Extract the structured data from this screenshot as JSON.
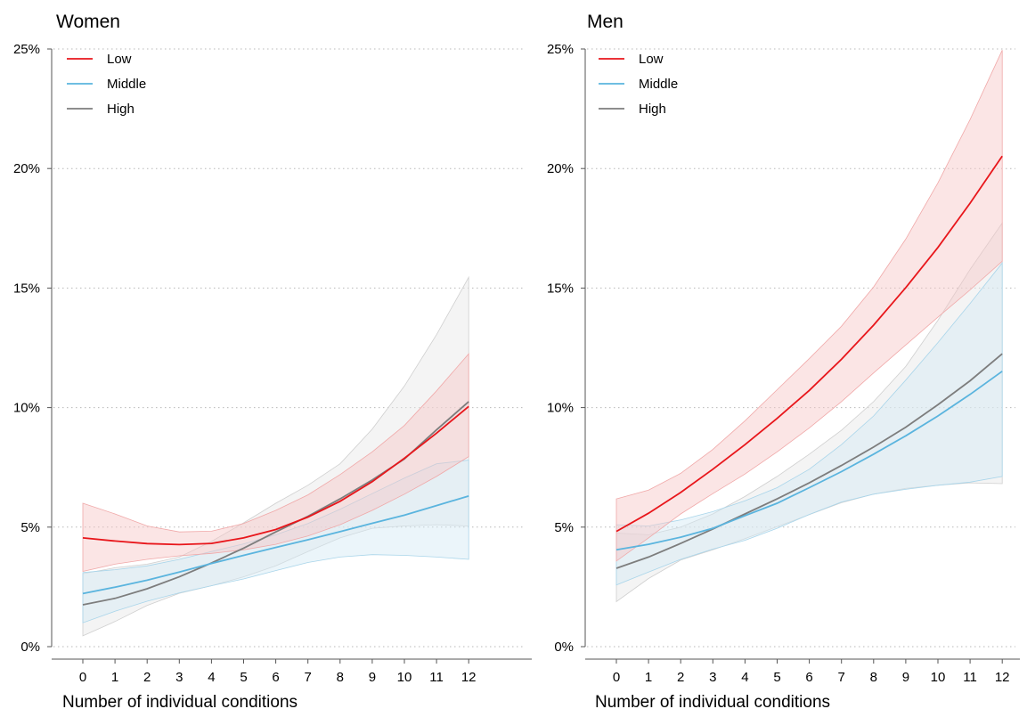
{
  "chart_data": [
    {
      "type": "line",
      "title": "Women",
      "xlabel": "Number of individual conditions",
      "ylabel": "",
      "x": [
        0,
        1,
        2,
        3,
        4,
        5,
        6,
        7,
        8,
        9,
        10,
        11,
        12
      ],
      "x_tick_labels": [
        "0",
        "1",
        "2",
        "3",
        "4",
        "5",
        "6",
        "7",
        "8",
        "9",
        "10",
        "11",
        "12"
      ],
      "ylim": [
        0,
        0.25
      ],
      "y_ticks": [
        0,
        0.05,
        0.1,
        0.15,
        0.2,
        0.25
      ],
      "y_tick_labels": [
        "0%",
        "5%",
        "10%",
        "15%",
        "20%",
        "25%"
      ],
      "grid": "horizontal dotted",
      "legend_position": "top-left",
      "series": [
        {
          "name": "Low",
          "color": "#e8161b",
          "values": [
            0.0455,
            0.0442,
            0.0431,
            0.0427,
            0.0432,
            0.0455,
            0.049,
            0.0542,
            0.0608,
            0.069,
            0.0788,
            0.0893,
            0.1005
          ],
          "lower": [
            0.0315,
            0.0345,
            0.0365,
            0.038,
            0.039,
            0.0405,
            0.0428,
            0.0463,
            0.051,
            0.057,
            0.0638,
            0.0712,
            0.0795
          ],
          "upper": [
            0.06,
            0.0555,
            0.0505,
            0.048,
            0.0483,
            0.0515,
            0.057,
            0.0635,
            0.072,
            0.0815,
            0.0925,
            0.107,
            0.1225
          ]
        },
        {
          "name": "Middle",
          "color": "#5ab4de",
          "values": [
            0.0222,
            0.0249,
            0.0278,
            0.0312,
            0.0348,
            0.0382,
            0.0415,
            0.0447,
            0.0481,
            0.0516,
            0.055,
            0.059,
            0.063
          ],
          "lower": [
            0.01,
            0.0148,
            0.019,
            0.0225,
            0.0255,
            0.0283,
            0.0318,
            0.0352,
            0.0375,
            0.0385,
            0.0382,
            0.0375,
            0.0365
          ],
          "upper": [
            0.031,
            0.0322,
            0.0338,
            0.0365,
            0.0398,
            0.043,
            0.0468,
            0.0515,
            0.0575,
            0.064,
            0.0705,
            0.0765,
            0.078
          ]
        },
        {
          "name": "High",
          "color": "#7d7d7d",
          "values": [
            0.0175,
            0.0202,
            0.0242,
            0.0292,
            0.035,
            0.0412,
            0.048,
            0.0545,
            0.0618,
            0.0697,
            0.0785,
            0.0907,
            0.1025
          ],
          "lower": [
            0.0045,
            0.0105,
            0.0172,
            0.0223,
            0.0255,
            0.0292,
            0.0338,
            0.0398,
            0.0455,
            0.0495,
            0.0505,
            0.051,
            0.0505
          ],
          "upper": [
            0.0305,
            0.033,
            0.0345,
            0.0375,
            0.044,
            0.0518,
            0.06,
            0.0675,
            0.0765,
            0.091,
            0.109,
            0.1305,
            0.1545
          ]
        }
      ]
    },
    {
      "type": "line",
      "title": "Men",
      "xlabel": "Number of individual conditions",
      "ylabel": "",
      "x": [
        0,
        1,
        2,
        3,
        4,
        5,
        6,
        7,
        8,
        9,
        10,
        11,
        12
      ],
      "x_tick_labels": [
        "0",
        "1",
        "2",
        "3",
        "4",
        "5",
        "6",
        "7",
        "8",
        "9",
        "10",
        "11",
        "12"
      ],
      "ylim": [
        0,
        0.25
      ],
      "y_ticks": [
        0,
        0.05,
        0.1,
        0.15,
        0.2,
        0.25
      ],
      "y_tick_labels": [
        "0%",
        "5%",
        "10%",
        "15%",
        "20%",
        "25%"
      ],
      "grid": "horizontal dotted",
      "legend_position": "top-left",
      "series": [
        {
          "name": "Low",
          "color": "#e8161b",
          "values": [
            0.0482,
            0.0558,
            0.0645,
            0.0742,
            0.0845,
            0.0955,
            0.1072,
            0.1202,
            0.1345,
            0.1502,
            0.167,
            0.1855,
            0.2052
          ],
          "lower": [
            0.0358,
            0.0455,
            0.0555,
            0.064,
            0.0722,
            0.0815,
            0.0915,
            0.1025,
            0.1145,
            0.1262,
            0.1378,
            0.1492,
            0.1612
          ],
          "upper": [
            0.0618,
            0.0655,
            0.0725,
            0.0825,
            0.0945,
            0.1075,
            0.1205,
            0.134,
            0.1505,
            0.1705,
            0.194,
            0.2205,
            0.2495
          ]
        },
        {
          "name": "Middle",
          "color": "#5ab4de",
          "values": [
            0.0405,
            0.0428,
            0.0458,
            0.0495,
            0.0548,
            0.06,
            0.0665,
            0.0732,
            0.0805,
            0.0882,
            0.0965,
            0.1055,
            0.1152
          ],
          "lower": [
            0.0258,
            0.0312,
            0.0365,
            0.0408,
            0.0445,
            0.0495,
            0.0553,
            0.0605,
            0.0638,
            0.0658,
            0.0675,
            0.0688,
            0.0712
          ],
          "upper": [
            0.051,
            0.0505,
            0.053,
            0.0565,
            0.061,
            0.0665,
            0.0742,
            0.0845,
            0.0965,
            0.1115,
            0.1272,
            0.1435,
            0.1605
          ]
        },
        {
          "name": "High",
          "color": "#7d7d7d",
          "values": [
            0.0328,
            0.0375,
            0.0432,
            0.0492,
            0.0555,
            0.0618,
            0.0685,
            0.0758,
            0.0835,
            0.0918,
            0.1012,
            0.1112,
            0.1225
          ],
          "lower": [
            0.0188,
            0.0285,
            0.0362,
            0.0405,
            0.0452,
            0.0502,
            0.0552,
            0.0602,
            0.0638,
            0.0662,
            0.0675,
            0.0685,
            0.0682
          ],
          "upper": [
            0.0475,
            0.0468,
            0.05,
            0.0555,
            0.0628,
            0.0712,
            0.0805,
            0.0905,
            0.1025,
            0.1172,
            0.1365,
            0.1578,
            0.1772
          ]
        }
      ]
    }
  ]
}
